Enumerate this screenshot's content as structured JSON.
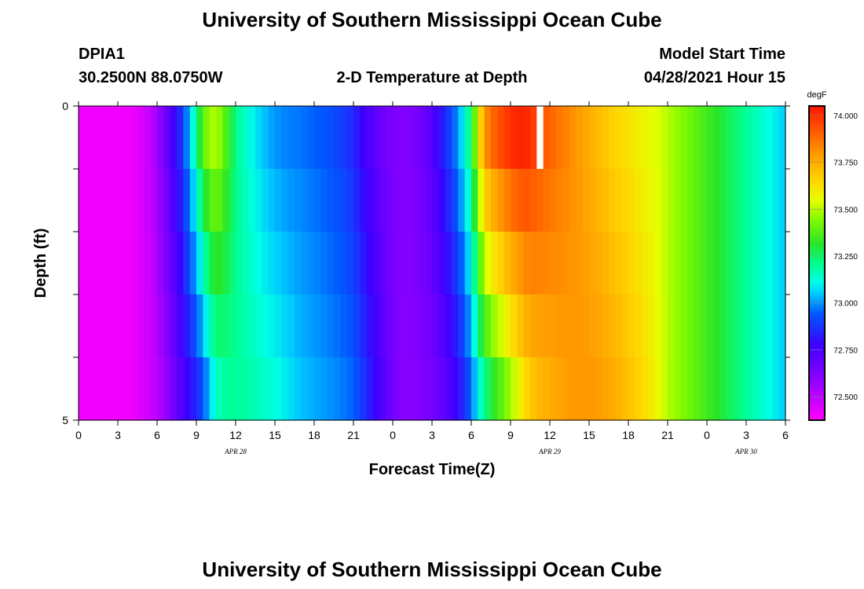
{
  "page": {
    "title": "University of Southern Mississippi Ocean Cube",
    "footer_title": "University of Southern Mississippi Ocean Cube",
    "station": "DPIA1",
    "coordinates": "30.2500N  88.0750W",
    "model_label": "Model Start Time",
    "model_time": "04/28/2021 Hour 15"
  },
  "chart_data": {
    "type": "heatmap",
    "title": "2-D Temperature at Depth",
    "xlabel": "Forecast Time(Z)",
    "ylabel": "Depth (ft)",
    "x_tick_labels": [
      "0",
      "3",
      "6",
      "9",
      "12",
      "15",
      "18",
      "21",
      "0",
      "3",
      "6",
      "9",
      "12",
      "15",
      "18",
      "21",
      "0",
      "3",
      "6"
    ],
    "x_hours_range": [
      0,
      54
    ],
    "date_labels": [
      {
        "label": "APR 28",
        "hour": 12
      },
      {
        "label": "APR 29",
        "hour": 36
      },
      {
        "label": "APR 30",
        "hour": 51
      }
    ],
    "y_tick_labels": [
      "0",
      "5"
    ],
    "ylim": [
      0,
      5
    ],
    "depth_rows": 5,
    "colorbar": {
      "unit": "degF",
      "range": [
        72.375,
        74.05
      ],
      "tick_labels": [
        "74.000",
        "73.750",
        "73.500",
        "73.250",
        "73.000",
        "72.750",
        "72.500"
      ],
      "tick_values": [
        74.0,
        73.75,
        73.5,
        73.25,
        73.0,
        72.75,
        72.5
      ]
    },
    "temperature_profile_degF": {
      "hours": [
        0,
        4,
        5,
        6,
        6.5,
        7,
        7.5,
        8,
        8.5,
        9,
        9.5,
        10,
        10.5,
        11,
        11.5,
        12,
        13,
        14,
        15,
        16,
        17,
        18,
        19,
        20,
        21,
        22,
        23,
        24,
        25,
        26,
        27,
        28,
        29,
        30,
        30.5,
        31,
        31.5,
        32,
        32.5,
        33,
        33.5,
        34,
        34.5,
        35,
        36,
        37,
        38,
        39,
        40,
        41,
        42,
        43,
        44,
        45,
        46,
        47,
        48,
        49,
        50,
        51,
        52,
        53,
        54
      ],
      "surface": [
        72.4,
        72.4,
        72.45,
        72.55,
        72.65,
        72.72,
        72.8,
        72.9,
        73.05,
        73.2,
        73.38,
        73.48,
        73.5,
        73.42,
        73.32,
        73.22,
        73.12,
        73.05,
        73.0,
        72.98,
        72.97,
        72.95,
        72.93,
        72.9,
        72.85,
        72.75,
        72.68,
        72.63,
        72.62,
        72.65,
        72.72,
        72.85,
        73.0,
        73.25,
        73.55,
        73.8,
        73.88,
        73.92,
        73.96,
        74.0,
        74.02,
        74.02,
        74.0,
        73.95,
        73.9,
        73.85,
        73.8,
        73.75,
        73.7,
        73.65,
        73.62,
        73.58,
        73.55,
        73.5,
        73.45,
        73.4,
        73.35,
        73.3,
        73.25,
        73.2,
        73.15,
        73.1,
        73.05
      ],
      "bottom": [
        72.4,
        72.4,
        72.45,
        72.5,
        72.56,
        72.62,
        72.68,
        72.75,
        72.8,
        72.85,
        72.92,
        73.05,
        73.15,
        73.18,
        73.2,
        73.2,
        73.18,
        73.15,
        73.12,
        73.08,
        73.04,
        73.02,
        73.0,
        72.98,
        72.95,
        72.85,
        72.75,
        72.65,
        72.6,
        72.62,
        72.65,
        72.7,
        72.8,
        72.95,
        73.1,
        73.2,
        73.3,
        73.35,
        73.42,
        73.48,
        73.55,
        73.62,
        73.68,
        73.72,
        73.75,
        73.78,
        73.8,
        73.8,
        73.78,
        73.75,
        73.7,
        73.65,
        73.58,
        73.5,
        73.45,
        73.4,
        73.35,
        73.3,
        73.25,
        73.2,
        73.15,
        73.1,
        73.05
      ]
    },
    "missing_data": {
      "hour_start": 35.0,
      "hour_end": 35.5,
      "depth_start": 0,
      "depth_end": 1
    }
  }
}
